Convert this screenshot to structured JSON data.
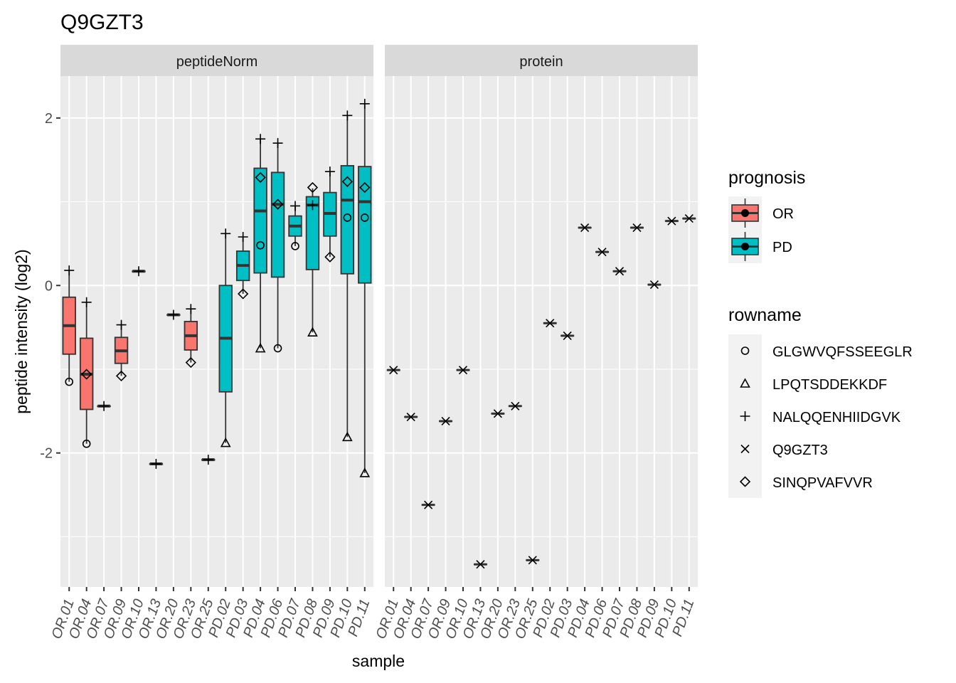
{
  "chart_data": {
    "type": "boxplot",
    "title": "Q9GZT3",
    "xlabel": "sample",
    "ylabel": "peptide intensity (log2)",
    "ylim": [
      -3.6,
      2.5
    ],
    "y_ticks": [
      -2,
      0,
      2
    ],
    "y_tick_labels": [
      "-2",
      "0",
      "2"
    ],
    "grid": true,
    "facets": [
      "peptideNorm",
      "protein"
    ],
    "samples": [
      "OR.01",
      "OR.04",
      "OR.07",
      "OR.09",
      "OR.10",
      "OR.13",
      "OR.20",
      "OR.23",
      "OR.25",
      "PD.02",
      "PD.03",
      "PD.04",
      "PD.06",
      "PD.07",
      "PD.08",
      "PD.09",
      "PD.10",
      "PD.11"
    ],
    "prognosis_of_sample": [
      "OR",
      "OR",
      "OR",
      "OR",
      "OR",
      "OR",
      "OR",
      "OR",
      "OR",
      "PD",
      "PD",
      "PD",
      "PD",
      "PD",
      "PD",
      "PD",
      "PD",
      "PD"
    ],
    "legend_prognosis": {
      "title": "prognosis",
      "items": [
        {
          "label": "OR",
          "color": "#F8766D"
        },
        {
          "label": "PD",
          "color": "#00BFC4"
        }
      ]
    },
    "legend_rowname": {
      "title": "rowname",
      "items": [
        {
          "label": "GLGWVQFSSEEGLR",
          "shape": "circle"
        },
        {
          "label": "LPQTSDDEKKDF",
          "shape": "triangle"
        },
        {
          "label": "NALQQENHIIDGVK",
          "shape": "plus"
        },
        {
          "label": "Q9GZT3",
          "shape": "cross"
        },
        {
          "label": "SINQPVAFVVR",
          "shape": "diamond"
        }
      ]
    },
    "peptideNorm": {
      "boxes": [
        {
          "sample": "OR.01",
          "q1": -0.82,
          "median": -0.48,
          "q3": -0.14,
          "wlow": -1.15,
          "whigh": 0.18
        },
        {
          "sample": "OR.04",
          "q1": -1.48,
          "median": -1.06,
          "q3": -0.63,
          "wlow": -1.89,
          "whigh": -0.2
        },
        {
          "sample": "OR.07",
          "q1": -1.44,
          "median": -1.44,
          "q3": -1.44,
          "wlow": -1.44,
          "whigh": -1.44
        },
        {
          "sample": "OR.09",
          "q1": -0.93,
          "median": -0.78,
          "q3": -0.62,
          "wlow": -1.08,
          "whigh": -0.47
        },
        {
          "sample": "OR.10",
          "q1": 0.17,
          "median": 0.17,
          "q3": 0.17,
          "wlow": 0.17,
          "whigh": 0.17
        },
        {
          "sample": "OR.13",
          "q1": -2.13,
          "median": -2.13,
          "q3": -2.13,
          "wlow": -2.13,
          "whigh": -2.13
        },
        {
          "sample": "OR.20",
          "q1": -0.35,
          "median": -0.35,
          "q3": -0.35,
          "wlow": -0.35,
          "whigh": -0.35
        },
        {
          "sample": "OR.23",
          "q1": -0.77,
          "median": -0.6,
          "q3": -0.43,
          "wlow": -0.92,
          "whigh": -0.28
        },
        {
          "sample": "OR.25",
          "q1": -2.08,
          "median": -2.08,
          "q3": -2.08,
          "wlow": -2.08,
          "whigh": -2.08
        },
        {
          "sample": "PD.02",
          "q1": -1.27,
          "median": -0.63,
          "q3": 0.0,
          "wlow": -1.88,
          "whigh": 0.62
        },
        {
          "sample": "PD.03",
          "q1": 0.06,
          "median": 0.24,
          "q3": 0.41,
          "wlow": -0.1,
          "whigh": 0.58
        },
        {
          "sample": "PD.04",
          "q1": 0.15,
          "median": 0.89,
          "q3": 1.4,
          "wlow": -0.75,
          "whigh": 1.75
        },
        {
          "sample": "PD.06",
          "q1": 0.1,
          "median": 0.97,
          "q3": 1.35,
          "wlow": -0.75,
          "whigh": 1.7
        },
        {
          "sample": "PD.07",
          "q1": 0.59,
          "median": 0.71,
          "q3": 0.83,
          "wlow": 0.47,
          "whigh": 0.95
        },
        {
          "sample": "PD.08",
          "q1": 0.19,
          "median": 0.96,
          "q3": 1.06,
          "wlow": -0.56,
          "whigh": 1.16
        },
        {
          "sample": "PD.09",
          "q1": 0.59,
          "median": 0.86,
          "q3": 1.11,
          "wlow": 0.34,
          "whigh": 1.36
        },
        {
          "sample": "PD.10",
          "q1": 0.14,
          "median": 1.02,
          "q3": 1.43,
          "wlow": -1.81,
          "whigh": 2.03
        },
        {
          "sample": "PD.11",
          "q1": 0.03,
          "median": 1.0,
          "q3": 1.42,
          "wlow": -2.24,
          "whigh": 2.17
        }
      ],
      "points": [
        {
          "sample": "OR.01",
          "rowname": "NALQQENHIIDGVK",
          "y": 0.18
        },
        {
          "sample": "OR.01",
          "rowname": "GLGWVQFSSEEGLR",
          "y": -1.15
        },
        {
          "sample": "OR.04",
          "rowname": "NALQQENHIIDGVK",
          "y": -0.2
        },
        {
          "sample": "OR.04",
          "rowname": "SINQPVAFVVR",
          "y": -1.06
        },
        {
          "sample": "OR.04",
          "rowname": "GLGWVQFSSEEGLR",
          "y": -1.89
        },
        {
          "sample": "OR.07",
          "rowname": "NALQQENHIIDGVK",
          "y": -1.44
        },
        {
          "sample": "OR.09",
          "rowname": "NALQQENHIIDGVK",
          "y": -0.47
        },
        {
          "sample": "OR.09",
          "rowname": "SINQPVAFVVR",
          "y": -1.08
        },
        {
          "sample": "OR.10",
          "rowname": "NALQQENHIIDGVK",
          "y": 0.17
        },
        {
          "sample": "OR.13",
          "rowname": "NALQQENHIIDGVK",
          "y": -2.13
        },
        {
          "sample": "OR.20",
          "rowname": "NALQQENHIIDGVK",
          "y": -0.35
        },
        {
          "sample": "OR.23",
          "rowname": "NALQQENHIIDGVK",
          "y": -0.28
        },
        {
          "sample": "OR.23",
          "rowname": "SINQPVAFVVR",
          "y": -0.92
        },
        {
          "sample": "OR.25",
          "rowname": "NALQQENHIIDGVK",
          "y": -2.08
        },
        {
          "sample": "PD.02",
          "rowname": "NALQQENHIIDGVK",
          "y": 0.62
        },
        {
          "sample": "PD.02",
          "rowname": "LPQTSDDEKKDF",
          "y": -1.88
        },
        {
          "sample": "PD.03",
          "rowname": "NALQQENHIIDGVK",
          "y": 0.58
        },
        {
          "sample": "PD.03",
          "rowname": "SINQPVAFVVR",
          "y": -0.1
        },
        {
          "sample": "PD.04",
          "rowname": "NALQQENHIIDGVK",
          "y": 1.75
        },
        {
          "sample": "PD.04",
          "rowname": "SINQPVAFVVR",
          "y": 1.29
        },
        {
          "sample": "PD.04",
          "rowname": "GLGWVQFSSEEGLR",
          "y": 0.48
        },
        {
          "sample": "PD.04",
          "rowname": "LPQTSDDEKKDF",
          "y": -0.75
        },
        {
          "sample": "PD.06",
          "rowname": "NALQQENHIIDGVK",
          "y": 1.7
        },
        {
          "sample": "PD.06",
          "rowname": "SINQPVAFVVR",
          "y": 0.97
        },
        {
          "sample": "PD.06",
          "rowname": "GLGWVQFSSEEGLR",
          "y": -0.75
        },
        {
          "sample": "PD.07",
          "rowname": "NALQQENHIIDGVK",
          "y": 0.95
        },
        {
          "sample": "PD.07",
          "rowname": "GLGWVQFSSEEGLR",
          "y": 0.47
        },
        {
          "sample": "PD.08",
          "rowname": "SINQPVAFVVR",
          "y": 1.17
        },
        {
          "sample": "PD.08",
          "rowname": "NALQQENHIIDGVK",
          "y": 0.96
        },
        {
          "sample": "PD.08",
          "rowname": "LPQTSDDEKKDF",
          "y": -0.56
        },
        {
          "sample": "PD.09",
          "rowname": "NALQQENHIIDGVK",
          "y": 1.36
        },
        {
          "sample": "PD.09",
          "rowname": "SINQPVAFVVR",
          "y": 0.34
        },
        {
          "sample": "PD.10",
          "rowname": "NALQQENHIIDGVK",
          "y": 2.03
        },
        {
          "sample": "PD.10",
          "rowname": "SINQPVAFVVR",
          "y": 1.24
        },
        {
          "sample": "PD.10",
          "rowname": "GLGWVQFSSEEGLR",
          "y": 0.81
        },
        {
          "sample": "PD.10",
          "rowname": "LPQTSDDEKKDF",
          "y": -1.81
        },
        {
          "sample": "PD.11",
          "rowname": "NALQQENHIIDGVK",
          "y": 2.17
        },
        {
          "sample": "PD.11",
          "rowname": "SINQPVAFVVR",
          "y": 1.17
        },
        {
          "sample": "PD.11",
          "rowname": "GLGWVQFSSEEGLR",
          "y": 0.81
        },
        {
          "sample": "PD.11",
          "rowname": "LPQTSDDEKKDF",
          "y": -2.24
        }
      ]
    },
    "protein": {
      "points": [
        {
          "sample": "OR.01",
          "rowname": "Q9GZT3",
          "y": -1.01
        },
        {
          "sample": "OR.04",
          "rowname": "Q9GZT3",
          "y": -1.57
        },
        {
          "sample": "OR.07",
          "rowname": "Q9GZT3",
          "y": -2.62
        },
        {
          "sample": "OR.09",
          "rowname": "Q9GZT3",
          "y": -1.62
        },
        {
          "sample": "OR.10",
          "rowname": "Q9GZT3",
          "y": -1.01
        },
        {
          "sample": "OR.13",
          "rowname": "Q9GZT3",
          "y": -3.33
        },
        {
          "sample": "OR.20",
          "rowname": "Q9GZT3",
          "y": -1.53
        },
        {
          "sample": "OR.23",
          "rowname": "Q9GZT3",
          "y": -1.44
        },
        {
          "sample": "OR.25",
          "rowname": "Q9GZT3",
          "y": -3.28
        },
        {
          "sample": "PD.02",
          "rowname": "Q9GZT3",
          "y": -0.45
        },
        {
          "sample": "PD.03",
          "rowname": "Q9GZT3",
          "y": -0.6
        },
        {
          "sample": "PD.04",
          "rowname": "Q9GZT3",
          "y": 0.69
        },
        {
          "sample": "PD.06",
          "rowname": "Q9GZT3",
          "y": 0.4
        },
        {
          "sample": "PD.07",
          "rowname": "Q9GZT3",
          "y": 0.17
        },
        {
          "sample": "PD.08",
          "rowname": "Q9GZT3",
          "y": 0.69
        },
        {
          "sample": "PD.09",
          "rowname": "Q9GZT3",
          "y": 0.01
        },
        {
          "sample": "PD.10",
          "rowname": "Q9GZT3",
          "y": 0.77
        },
        {
          "sample": "PD.11",
          "rowname": "Q9GZT3",
          "y": 0.8
        }
      ]
    }
  }
}
